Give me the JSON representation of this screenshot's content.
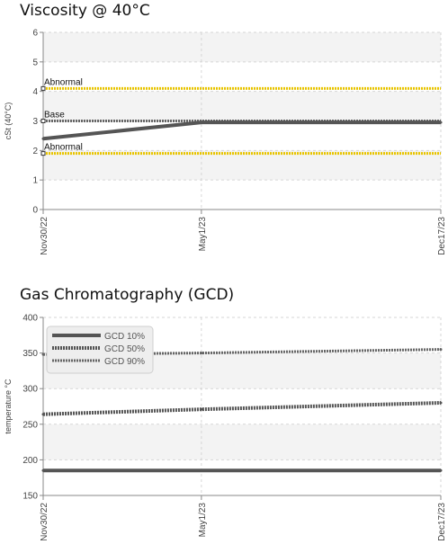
{
  "chart_data": [
    {
      "type": "line",
      "title": "Viscosity @ 40°C",
      "xlabel": "",
      "ylabel": "cSt (40°C)",
      "ylim": [
        0,
        6
      ],
      "yticks": [
        0,
        1,
        2,
        3,
        4,
        5,
        6
      ],
      "xticks": [
        "Nov30/22",
        "May1/23",
        "Dec17/23"
      ],
      "x": [
        "2022-11-30",
        "2023-05-01",
        "2023-12-17"
      ],
      "grid": true,
      "series": [
        {
          "values": [
            2.4,
            2.95,
            2.95
          ],
          "color": "#555555",
          "style": "solid-thick"
        }
      ],
      "reference_lines": [
        {
          "label": "Abnormal",
          "value": 4.1,
          "color": "#e8c400"
        },
        {
          "label": "Base",
          "value": 3.0,
          "color": "#666666"
        },
        {
          "label": "Abnormal",
          "value": 1.9,
          "color": "#e8c400"
        }
      ]
    },
    {
      "type": "line",
      "title": "Gas Chromatography (GCD)",
      "xlabel": "",
      "ylabel": "temperature °C",
      "ylim": [
        150,
        400
      ],
      "yticks": [
        150,
        200,
        250,
        300,
        350,
        400
      ],
      "xticks": [
        "Nov30/22",
        "May1/23",
        "Dec17/23"
      ],
      "x": [
        "2022-11-30",
        "2023-05-01",
        "2023-12-17"
      ],
      "grid": true,
      "legend": "top-left",
      "series": [
        {
          "name": "GCD 10%",
          "values": [
            185,
            185,
            185
          ],
          "color": "#555555",
          "style": "solid"
        },
        {
          "name": "GCD 50%",
          "values": [
            264,
            271,
            280
          ],
          "color": "#555555",
          "style": "dashed-thick"
        },
        {
          "name": "GCD 90%",
          "values": [
            348,
            350,
            355
          ],
          "color": "#666666",
          "style": "dashed"
        }
      ]
    }
  ]
}
